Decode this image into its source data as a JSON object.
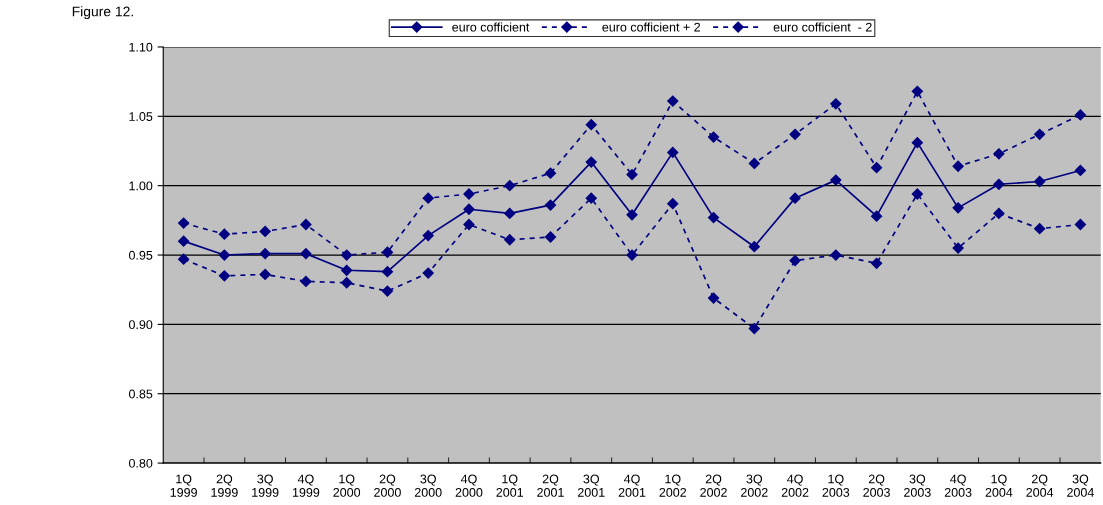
{
  "chart_data": {
    "type": "line",
    "title": "Figure 12.",
    "categories": [
      "1Q\n1999",
      "2Q\n1999",
      "3Q\n1999",
      "4Q\n1999",
      "1Q\n2000",
      "2Q\n2000",
      "3Q\n2000",
      "4Q\n2000",
      "1Q\n2001",
      "2Q\n2001",
      "3Q\n2001",
      "4Q\n2001",
      "1Q\n2002",
      "2Q\n2002",
      "3Q\n2002",
      "4Q\n2002",
      "1Q\n2003",
      "2Q\n2003",
      "3Q\n2003",
      "4Q\n2003",
      "1Q\n2004",
      "2Q\n2004",
      "3Q\n2004"
    ],
    "series": [
      {
        "name": "euro cofficient",
        "color": "#000080",
        "line_style": "solid",
        "values": [
          0.96,
          0.95,
          0.951,
          0.951,
          0.939,
          0.938,
          0.964,
          0.983,
          0.98,
          0.986,
          1.017,
          0.979,
          1.024,
          0.977,
          0.956,
          0.991,
          1.004,
          0.978,
          1.031,
          0.984,
          1.001,
          1.003,
          1.011
        ]
      },
      {
        "name": "euro cofficient + 2",
        "color": "#000080",
        "line_style": "dashed",
        "values": [
          0.973,
          0.965,
          0.967,
          0.972,
          0.95,
          0.952,
          0.991,
          0.994,
          1.0,
          1.009,
          1.044,
          1.008,
          1.061,
          1.035,
          1.016,
          1.037,
          1.059,
          1.013,
          1.068,
          1.014,
          1.023,
          1.037,
          1.051
        ]
      },
      {
        "name": "euro cofficient  - 2",
        "color": "#000080",
        "line_style": "dashed",
        "values": [
          0.947,
          0.935,
          0.936,
          0.931,
          0.93,
          0.924,
          0.937,
          0.972,
          0.961,
          0.963,
          0.991,
          0.95,
          0.987,
          0.919,
          0.897,
          0.946,
          0.95,
          0.944,
          0.994,
          0.955,
          0.98,
          0.969,
          0.972
        ]
      }
    ],
    "ylim": [
      0.8,
      1.1
    ],
    "yticks": [
      {
        "value": 0.8,
        "label": "0.80"
      },
      {
        "value": 0.85,
        "label": "0.85"
      },
      {
        "value": 0.9,
        "label": "0.90"
      },
      {
        "value": 0.95,
        "label": "0.95"
      },
      {
        "value": 1.0,
        "label": "1.00"
      },
      {
        "value": 1.05,
        "label": "1.05"
      },
      {
        "value": 1.1,
        "label": "1.10"
      }
    ],
    "grid": "y",
    "legend": "top",
    "marker": "diamond"
  }
}
